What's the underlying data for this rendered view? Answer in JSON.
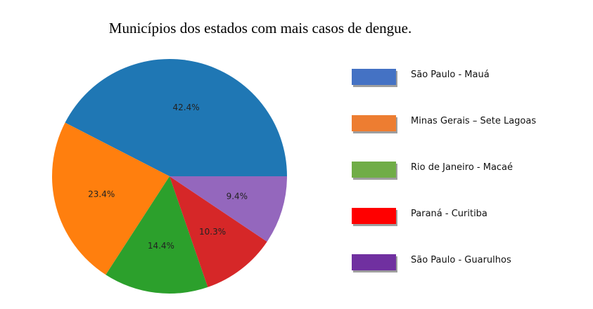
{
  "chart_data": {
    "type": "pie",
    "title": "Municípios dos estados com mais casos de dengue.",
    "start_angle_deg": 0,
    "direction": "counterclockwise",
    "slices": [
      {
        "name": "São Paulo - Mauá",
        "value": 42.4,
        "label": "42.4%",
        "color": "#1f77b4"
      },
      {
        "name": "Minas Gerais – Sete Lagoas",
        "value": 23.4,
        "label": "23.4%",
        "color": "#ff7f0e"
      },
      {
        "name": "Rio de Janeiro - Macaé",
        "value": 14.4,
        "label": "14.4%",
        "color": "#2ca02c"
      },
      {
        "name": "Paraná - Curitiba",
        "value": 10.3,
        "label": "10.3%",
        "color": "#d62728"
      },
      {
        "name": "São Paulo - Guarulhos",
        "value": 9.4,
        "label": "9.4%",
        "color": "#9467bd"
      }
    ],
    "legend": {
      "placement": "right",
      "items": [
        {
          "label": "São Paulo - Mauá",
          "color": "#4472c4"
        },
        {
          "label": "Minas Gerais – Sete Lagoas",
          "color": "#ed7d31"
        },
        {
          "label": "Rio de Janeiro - Macaé",
          "color": "#70ad47"
        },
        {
          "label": "Paraná - Curitiba",
          "color": "#ff0000"
        },
        {
          "label": "São Paulo - Guarulhos",
          "color": "#7030a0"
        }
      ]
    }
  }
}
